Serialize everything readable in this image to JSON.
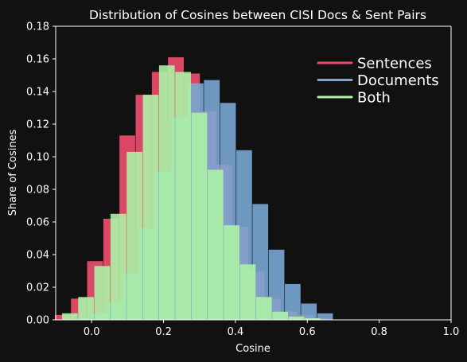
{
  "chart_data": {
    "type": "bar",
    "title": "Distribution of Cosines between CISI Docs & Sent Pairs",
    "xlabel": "Cosine",
    "ylabel": "Share of Cosines",
    "xlim": [
      -0.1,
      1.0
    ],
    "ylim": [
      0.0,
      0.18
    ],
    "xticks": [
      "0.0",
      "0.2",
      "0.4",
      "0.6",
      "0.8",
      "1.0"
    ],
    "yticks": [
      "0.00",
      "0.02",
      "0.04",
      "0.06",
      "0.08",
      "0.10",
      "0.12",
      "0.14",
      "0.16",
      "0.18"
    ],
    "legend_position": "top-right",
    "grid": false,
    "colors": {
      "Sentences": "#e64c6a",
      "Documents": "#79a7d4",
      "Both": "#abf2a6",
      "background": "#111111",
      "axes": "#ffffff"
    },
    "series": [
      {
        "name": "Sentences",
        "bin_width": 0.045,
        "bars": [
          {
            "x": -0.08,
            "y": 0.003
          },
          {
            "x": -0.035,
            "y": 0.013
          },
          {
            "x": 0.01,
            "y": 0.036
          },
          {
            "x": 0.055,
            "y": 0.062
          },
          {
            "x": 0.1,
            "y": 0.113
          },
          {
            "x": 0.145,
            "y": 0.138
          },
          {
            "x": 0.19,
            "y": 0.152
          },
          {
            "x": 0.235,
            "y": 0.161
          },
          {
            "x": 0.28,
            "y": 0.151
          },
          {
            "x": 0.325,
            "y": 0.128
          },
          {
            "x": 0.37,
            "y": 0.095
          },
          {
            "x": 0.415,
            "y": 0.057
          },
          {
            "x": 0.46,
            "y": 0.03
          },
          {
            "x": 0.505,
            "y": 0.013
          },
          {
            "x": 0.55,
            "y": 0.005
          },
          {
            "x": 0.595,
            "y": 0.003
          },
          {
            "x": 0.64,
            "y": 0.001
          }
        ]
      },
      {
        "name": "Documents",
        "bin_width": 0.045,
        "bars": [
          {
            "x": -0.07,
            "y": 0.0
          },
          {
            "x": -0.025,
            "y": 0.001
          },
          {
            "x": 0.02,
            "y": 0.004
          },
          {
            "x": 0.065,
            "y": 0.011
          },
          {
            "x": 0.11,
            "y": 0.028
          },
          {
            "x": 0.155,
            "y": 0.056
          },
          {
            "x": 0.2,
            "y": 0.091
          },
          {
            "x": 0.245,
            "y": 0.124
          },
          {
            "x": 0.29,
            "y": 0.145
          },
          {
            "x": 0.335,
            "y": 0.147
          },
          {
            "x": 0.38,
            "y": 0.133
          },
          {
            "x": 0.425,
            "y": 0.104
          },
          {
            "x": 0.47,
            "y": 0.071
          },
          {
            "x": 0.515,
            "y": 0.043
          },
          {
            "x": 0.56,
            "y": 0.022
          },
          {
            "x": 0.605,
            "y": 0.01
          },
          {
            "x": 0.65,
            "y": 0.004
          }
        ]
      },
      {
        "name": "Both",
        "bin_width": 0.045,
        "bars": [
          {
            "x": -0.06,
            "y": 0.004
          },
          {
            "x": -0.015,
            "y": 0.014
          },
          {
            "x": 0.03,
            "y": 0.033
          },
          {
            "x": 0.075,
            "y": 0.065
          },
          {
            "x": 0.12,
            "y": 0.103
          },
          {
            "x": 0.165,
            "y": 0.138
          },
          {
            "x": 0.21,
            "y": 0.156
          },
          {
            "x": 0.255,
            "y": 0.152
          },
          {
            "x": 0.3,
            "y": 0.127
          },
          {
            "x": 0.345,
            "y": 0.092
          },
          {
            "x": 0.39,
            "y": 0.058
          },
          {
            "x": 0.435,
            "y": 0.034
          },
          {
            "x": 0.48,
            "y": 0.014
          },
          {
            "x": 0.525,
            "y": 0.005
          },
          {
            "x": 0.57,
            "y": 0.002
          },
          {
            "x": 0.615,
            "y": 0.001
          }
        ]
      }
    ]
  }
}
